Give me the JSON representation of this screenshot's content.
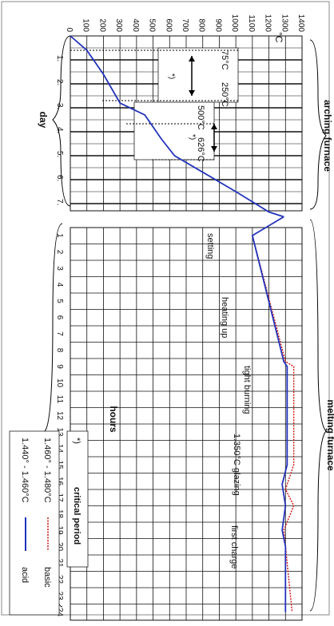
{
  "temperature_axis": {
    "unit": "°C",
    "ticks": [
      "0",
      "100",
      "200",
      "300",
      "400",
      "500",
      "600",
      "700",
      "800",
      "900",
      "1000",
      "1100",
      "1200",
      "1300",
      "1400"
    ]
  },
  "arching_furnace": {
    "label": "arching furnace",
    "axis_label": "day",
    "day_ticks": [
      "1.",
      "2.",
      "3.",
      "4.",
      "5.",
      "6.",
      "7."
    ],
    "critical_1": {
      "low": "75°C",
      "high": "250°C",
      "marker": "*)"
    },
    "critical_2": {
      "low": "500°C",
      "high": "626°C",
      "marker": "*)"
    }
  },
  "melting_furnace": {
    "label": "melting furnace",
    "axis_label": "hours",
    "hour_ticks": [
      "1",
      "2",
      "3",
      "4",
      "5",
      "6",
      "7",
      "8",
      "9",
      "10",
      "11",
      "12",
      "13",
      "14",
      "15",
      "16",
      "17",
      "18",
      "19",
      "20",
      "21",
      "22",
      "23",
      "24"
    ],
    "phases": {
      "setting": "setting",
      "heating_up": "heating up",
      "tight_burning": "tight burning",
      "glazing": "1.350°C glazing",
      "first_charge": "first charge"
    }
  },
  "legend": {
    "critical_marker": "*)",
    "critical_label": "critical period",
    "basic_range": "1.460° - 1.480°C",
    "basic_label": "basic",
    "acid_range": "1.440° - 1.460°C",
    "acid_label": "acid"
  },
  "colors": {
    "acid": "#2233bb",
    "basic": "#cc1111",
    "grid": "#111111"
  },
  "chart_data": {
    "type": "line",
    "x_unit": "°C",
    "xlim": [
      0,
      1400
    ],
    "arching_furnace": {
      "y_axis": "day",
      "ylim": [
        0,
        7.2
      ],
      "series": [
        {
          "name": "acid",
          "points": [
            [
              0,
              0
            ],
            [
              100,
              0.6
            ],
            [
              200,
              1.6
            ],
            [
              300,
              2.8
            ],
            [
              450,
              3.3
            ],
            [
              550,
              4.3
            ],
            [
              630,
              5.0
            ],
            [
              1000,
              6.5
            ],
            [
              1200,
              7.35
            ],
            [
              1290,
              7.55
            ]
          ]
        }
      ]
    },
    "melting_furnace": {
      "y_axis": "hours",
      "ylim": [
        1,
        24
      ],
      "series": [
        {
          "name": "basic",
          "points": [
            [
              1100,
              1
            ],
            [
              1300,
              8.7
            ],
            [
              1350,
              9
            ],
            [
              1350,
              15
            ],
            [
              1300,
              16.5
            ],
            [
              1350,
              17.5
            ],
            [
              1290,
              19
            ],
            [
              1300,
              20
            ],
            [
              1340,
              24
            ]
          ]
        },
        {
          "name": "acid",
          "points": [
            [
              1100,
              1
            ],
            [
              1290,
              8.7
            ],
            [
              1310,
              9
            ],
            [
              1310,
              15
            ],
            [
              1280,
              16.2
            ],
            [
              1300,
              17.5
            ],
            [
              1280,
              19
            ],
            [
              1300,
              20
            ],
            [
              1300,
              24
            ]
          ]
        }
      ]
    }
  }
}
